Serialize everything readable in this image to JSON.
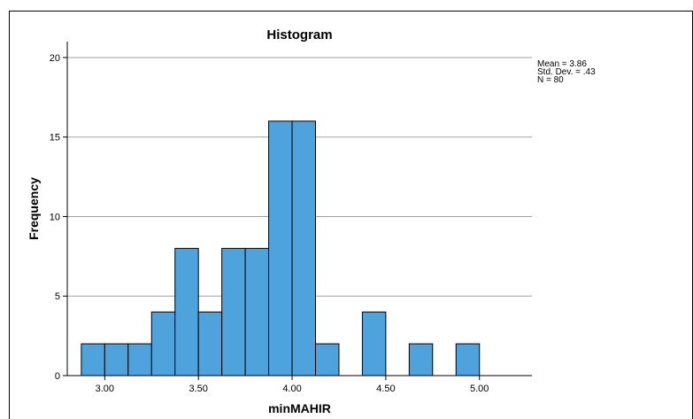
{
  "chart_data": {
    "type": "bar",
    "title": "Histogram",
    "xlabel": "minMAHIR",
    "ylabel": "Frequency",
    "ylim": [
      0,
      21
    ],
    "yticks": [
      "0",
      "5",
      "10",
      "15",
      "20"
    ],
    "ytick_values": [
      0,
      5,
      10,
      15,
      20
    ],
    "xticks": [
      "3.00",
      "3.50",
      "4.00",
      "4.50",
      "5.00"
    ],
    "xtick_values": [
      3.0,
      3.5,
      4.0,
      4.5,
      5.0
    ],
    "bin_width": 0.125,
    "bins": [
      {
        "center": 2.9375,
        "value": 2
      },
      {
        "center": 3.0625,
        "value": 2
      },
      {
        "center": 3.1875,
        "value": 2
      },
      {
        "center": 3.3125,
        "value": 4
      },
      {
        "center": 3.4375,
        "value": 8
      },
      {
        "center": 3.5625,
        "value": 4
      },
      {
        "center": 3.6875,
        "value": 8
      },
      {
        "center": 3.8125,
        "value": 8
      },
      {
        "center": 3.9375,
        "value": 16
      },
      {
        "center": 4.0625,
        "value": 16
      },
      {
        "center": 4.1875,
        "value": 2
      },
      {
        "center": 4.3125,
        "value": 0
      },
      {
        "center": 4.4375,
        "value": 4
      },
      {
        "center": 4.5625,
        "value": 0
      },
      {
        "center": 4.6875,
        "value": 2
      },
      {
        "center": 4.8125,
        "value": 0
      },
      {
        "center": 4.9375,
        "value": 2
      }
    ],
    "stats": [
      "Mean = 3.86",
      "Std. Dev. = .43",
      "N = 80"
    ],
    "grid": true,
    "bar_color": "#4ea3dc"
  }
}
